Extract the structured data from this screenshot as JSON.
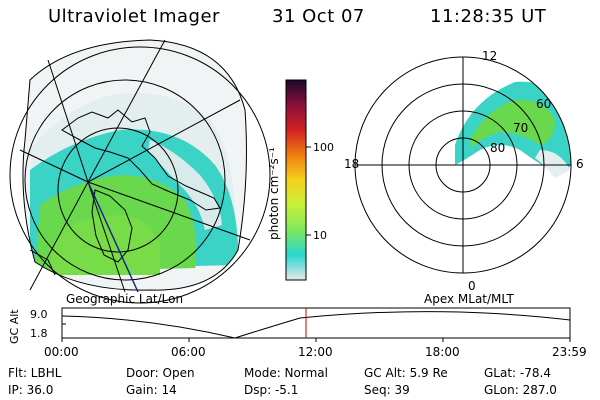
{
  "header": {
    "instrument": "Ultraviolet Imager",
    "date": "31 Oct 07",
    "time": "11:28:35 UT"
  },
  "colorbar": {
    "unit_label": "photon cm⁻²s⁻¹",
    "ticks": [
      "100",
      "10"
    ],
    "tick_values": [
      100,
      10
    ],
    "stops": [
      "#e8e8e8",
      "#29d7cf",
      "#7fe85c",
      "#c6f03b",
      "#f5d11a",
      "#f07d12",
      "#d22222",
      "#8a0f3b",
      "#1a0a2a"
    ]
  },
  "left_map": {
    "label": "Geographic Lat/Lon",
    "colors": {
      "low": "#e6eded",
      "mid": "#37d4c8",
      "high": "#6cd84a",
      "outline": "#000000"
    }
  },
  "right_map": {
    "label": "Apex  MLat/MLT",
    "mlt_labels": {
      "top": "12",
      "left": "18",
      "right": "6",
      "bottom": "0"
    },
    "lat_labels": [
      "60",
      "70",
      "80"
    ]
  },
  "altitude_plot": {
    "ylabel": "GC Alt",
    "y_ticks": [
      "9.0",
      "1.8"
    ],
    "x_ticks": [
      "00:00",
      "06:00",
      "12:00",
      "18:00",
      "23:59"
    ],
    "marker_time": "11:28",
    "marker_color": "#c00000"
  },
  "info": {
    "flt": "Flt: LBHL",
    "ip": "IP: 36.0",
    "door": "Door: Open",
    "gain": "Gain: 14",
    "mode": "Mode: Normal",
    "dsp": "Dsp:   -5.1",
    "gc_alt": "GC Alt: 5.9 Re",
    "seq": "Seq: 39",
    "glat": "GLat: -78.4",
    "glon": "GLon: 287.0"
  }
}
